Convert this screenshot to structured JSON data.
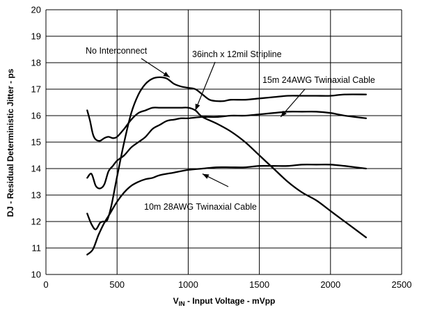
{
  "chart_data": {
    "type": "line",
    "title": "",
    "xlabel": "V",
    "xlabel_sub": "IN",
    "xlabel_rest": " - Input Voltage - mVpp",
    "ylabel": "DJ - Residual Deterministic Jitter - ps",
    "xlim": [
      0,
      2500
    ],
    "ylim": [
      10,
      20
    ],
    "xticks": [
      0,
      500,
      1000,
      1500,
      2000,
      2500
    ],
    "yticks": [
      10,
      11,
      12,
      13,
      14,
      15,
      16,
      17,
      18,
      19,
      20
    ],
    "grid": true,
    "series": [
      {
        "name": "No Interconnect",
        "x": [
          290,
          320,
          350,
          380,
          400,
          430,
          460,
          500,
          550,
          600,
          650,
          700,
          750,
          800,
          850,
          900,
          950,
          1000,
          1050,
          1100,
          1150,
          1200,
          1250,
          1300,
          1400,
          1500,
          1600,
          1700,
          1800,
          1900,
          2000,
          2100,
          2250
        ],
        "y": [
          12.3,
          11.9,
          11.7,
          11.95,
          12.0,
          12.05,
          12.6,
          13.7,
          15.0,
          16.1,
          16.8,
          17.2,
          17.4,
          17.45,
          17.4,
          17.2,
          17.1,
          17.05,
          17.0,
          16.8,
          16.6,
          16.55,
          16.55,
          16.6,
          16.6,
          16.65,
          16.7,
          16.75,
          16.75,
          16.75,
          16.75,
          16.8,
          16.8
        ]
      },
      {
        "name": "36inch x 12mil Stripline",
        "x": [
          290,
          310,
          330,
          350,
          380,
          410,
          440,
          470,
          500,
          550,
          600,
          650,
          700,
          750,
          800,
          850,
          900,
          950,
          1000,
          1050,
          1100,
          1200,
          1300,
          1400,
          1500,
          1600,
          1700,
          1800,
          1900,
          2000,
          2100,
          2250
        ],
        "y": [
          16.2,
          15.8,
          15.3,
          15.1,
          15.05,
          15.15,
          15.2,
          15.15,
          15.2,
          15.5,
          15.85,
          16.1,
          16.2,
          16.3,
          16.3,
          16.3,
          16.3,
          16.3,
          16.3,
          16.2,
          15.95,
          15.7,
          15.4,
          15.0,
          14.5,
          14.0,
          13.5,
          13.1,
          12.8,
          12.4,
          12.0,
          11.4
        ]
      },
      {
        "name": "15m 24AWG Twinaxial Cable",
        "x": [
          290,
          320,
          350,
          380,
          410,
          440,
          470,
          500,
          550,
          600,
          650,
          700,
          750,
          800,
          850,
          900,
          950,
          1000,
          1100,
          1200,
          1300,
          1400,
          1500,
          1600,
          1700,
          1800,
          1900,
          2000,
          2100,
          2250
        ],
        "y": [
          13.65,
          13.8,
          13.35,
          13.25,
          13.4,
          13.9,
          14.1,
          14.3,
          14.5,
          14.8,
          15.0,
          15.2,
          15.5,
          15.65,
          15.8,
          15.85,
          15.9,
          15.9,
          15.95,
          15.95,
          16.0,
          16.0,
          16.05,
          16.1,
          16.15,
          16.15,
          16.15,
          16.1,
          16.0,
          15.9
        ]
      },
      {
        "name": "10m 28AWG Twinaxial Cable",
        "x": [
          290,
          330,
          370,
          410,
          450,
          500,
          550,
          600,
          650,
          700,
          750,
          800,
          900,
          1000,
          1100,
          1200,
          1300,
          1400,
          1500,
          1600,
          1700,
          1800,
          1900,
          2000,
          2100,
          2250
        ],
        "y": [
          10.75,
          10.95,
          11.5,
          11.95,
          12.3,
          12.75,
          13.1,
          13.35,
          13.5,
          13.6,
          13.65,
          13.75,
          13.85,
          13.95,
          14.0,
          14.05,
          14.05,
          14.05,
          14.1,
          14.1,
          14.1,
          14.15,
          14.15,
          14.15,
          14.1,
          14.0
        ]
      }
    ],
    "annotations": [
      {
        "text": "No Interconnect",
        "arrow_to": [
          870,
          17.45
        ]
      },
      {
        "text": "36inch x 12mil Stripline",
        "arrow_to": [
          1050,
          16.2
        ]
      },
      {
        "text": "15m 24AWG Twinaxial Cable",
        "arrow_to": [
          1650,
          15.95
        ]
      },
      {
        "text": "10m 28AWG Twinaxial Cable",
        "arrow_to": [
          1100,
          13.8
        ]
      }
    ]
  }
}
